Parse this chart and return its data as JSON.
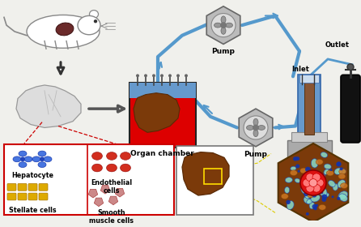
{
  "bg_color": "#f0f0ec",
  "labels": {
    "pump_top": "Pump",
    "pump_mid": "Pump",
    "organ_chamber": "Organ chamber",
    "inlet": "Inlet",
    "outlet": "Outlet",
    "hepatocyte": "Hepatocyte",
    "stellate": "Stellate cells",
    "endothelial": "Endothelial\ncells",
    "smooth": "Smooth\nmuscle cells"
  },
  "colors": {
    "organ_chamber_bg": "#dd0000",
    "organ_liquid": "#6699cc",
    "liver_fill": "#7b3a0a",
    "liver_dark": "#5a2a05",
    "box_border_red": "#cc0000",
    "arrow_blue": "#5599cc",
    "arrow_dark": "#333333",
    "pump_fill": "#bbbbbb",
    "pump_inner": "#dddddd",
    "hepatocyte_blue": "#2255cc",
    "stellate_gold": "#ddaa00",
    "endothelial_red": "#cc1100",
    "smooth_pink": "#cc7777",
    "hex_bg": "#7b3a0a",
    "hex_cyan": "#88ddcc",
    "hex_blue": "#1133aa",
    "vessel_red": "#cc0000",
    "gas_black": "#111111",
    "yellow_box": "#ffdd00",
    "white": "#ffffff",
    "gray": "#aaaaaa",
    "dark_gray": "#555555"
  }
}
